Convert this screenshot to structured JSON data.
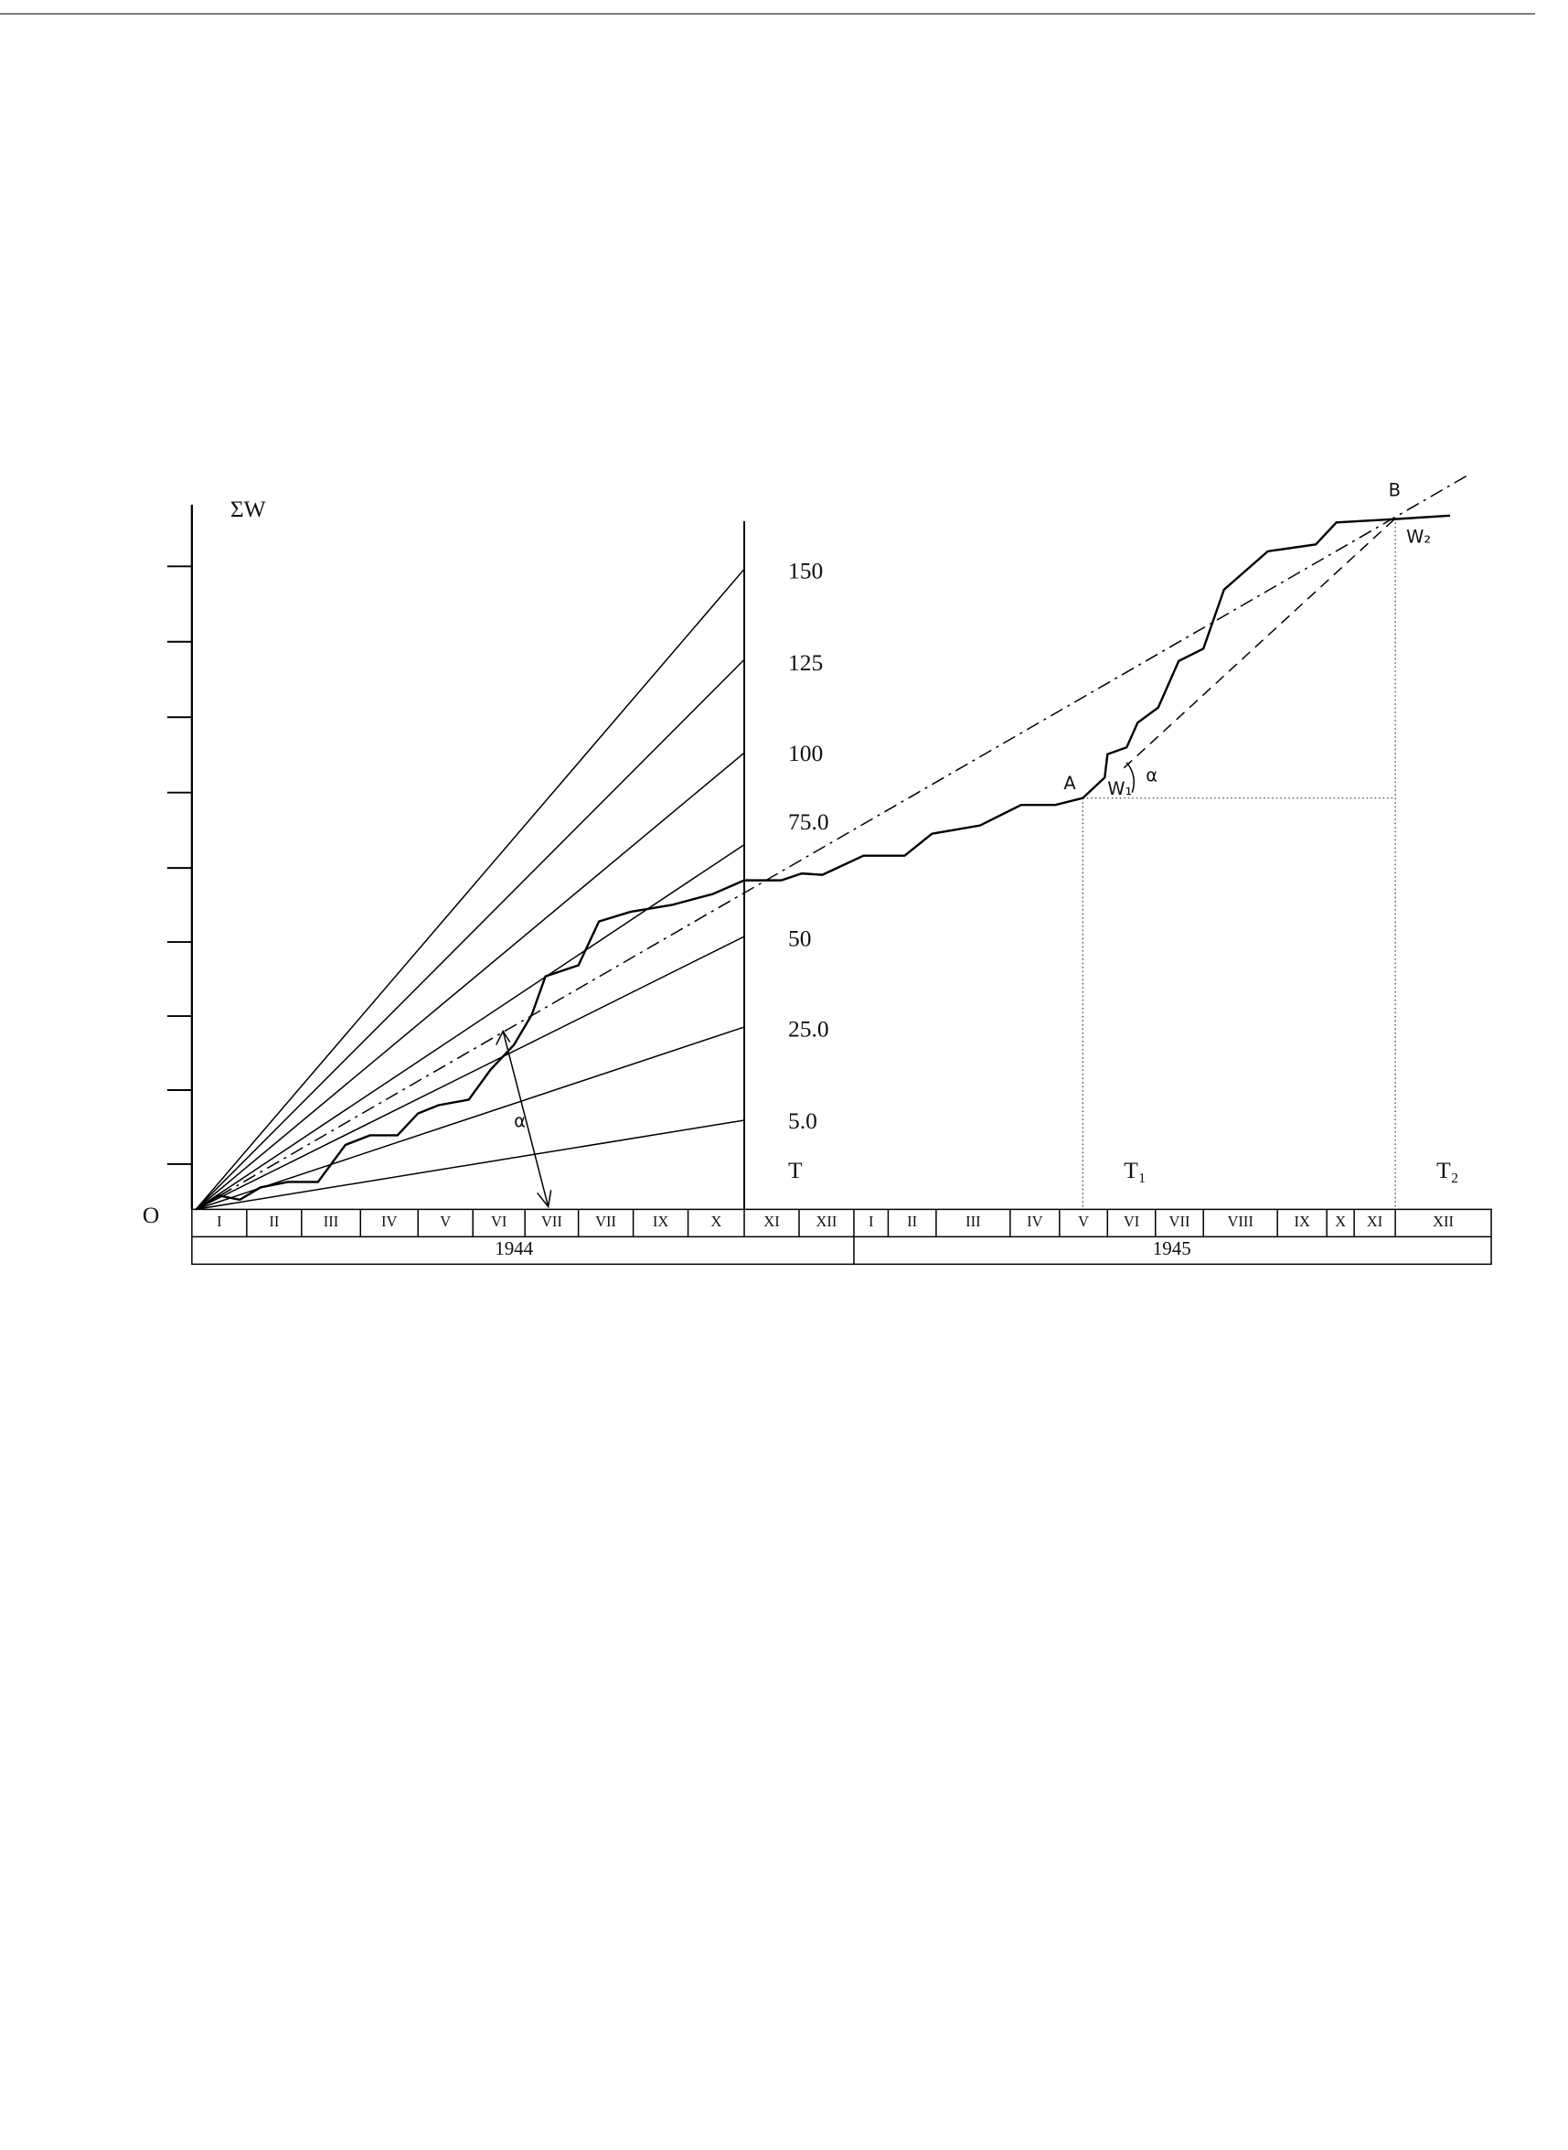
{
  "axis": {
    "y_label": "ΣW",
    "origin": "O"
  },
  "fan_labels": [
    "150",
    "125",
    "100",
    "75.0",
    "50",
    "25.0",
    "5.0"
  ],
  "time_markers": [
    "T",
    "T₁",
    "T₂"
  ],
  "points": {
    "a": "A",
    "b": "B",
    "w1": "W₁",
    "w2": "W₂",
    "angle_left": "α",
    "angle_right": "α"
  },
  "months_1944": [
    "I",
    "II",
    "III",
    "IV",
    "V",
    "VI",
    "VII",
    "VII",
    "IX",
    "X",
    "XI",
    "XII"
  ],
  "months_1945": [
    "I",
    "II",
    "III",
    "IV",
    "V",
    "VI",
    "VII",
    "VIII",
    "IX",
    "X",
    "XI",
    "XII"
  ],
  "years": [
    "1944",
    "1945"
  ]
}
